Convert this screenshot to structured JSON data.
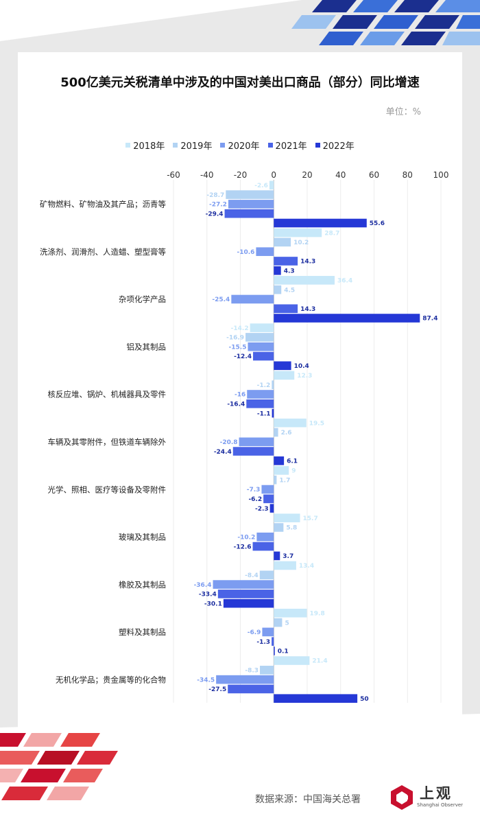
{
  "title": "500亿美元关税清单中涉及的中国对美出口商品（部分）同比增速",
  "unit": "单位：%",
  "source": "数据来源：中国海关总署",
  "logo": {
    "main": "上观",
    "sub": "Shanghai Observer"
  },
  "colors": {
    "2018年": "#c7e8f9",
    "2019年": "#b2d3f3",
    "2020年": "#7c9cf0",
    "2021年": "#4a63e6",
    "2022年": "#2538d6"
  },
  "chart_data": {
    "type": "bar",
    "orientation": "horizontal",
    "title": "500亿美元关税清单中涉及的中国对美出口商品（部分）同比增速",
    "unit": "单位：%",
    "xlim": [
      -60,
      100
    ],
    "xticks": [
      -60,
      -40,
      -20,
      0,
      20,
      40,
      60,
      80,
      100
    ],
    "legend_position": "top",
    "grid": true,
    "categories": [
      "矿物燃料、矿物油及其产品；沥青等",
      "洗涤剂、润滑剂、人造蜡、塑型膏等",
      "杂项化学产品",
      "铝及其制品",
      "核反应堆、锅炉、机械器具及零件",
      "车辆及其零附件，但铁道车辆除外",
      "光学、照相、医疗等设备及零附件",
      "玻璃及其制品",
      "橡胶及其制品",
      "塑料及其制品",
      "无机化学品；贵金属等的化合物"
    ],
    "series": [
      {
        "name": "2018年",
        "values": [
          -2.6,
          28.7,
          36.4,
          -14.2,
          12.3,
          19.5,
          9,
          15.7,
          13.4,
          19.8,
          21.4
        ]
      },
      {
        "name": "2019年",
        "values": [
          -28.7,
          10.2,
          4.5,
          -16.9,
          -1.2,
          2.6,
          1.7,
          5.8,
          -8.4,
          5,
          -8.3
        ]
      },
      {
        "name": "2020年",
        "values": [
          -27.2,
          -10.6,
          -25.4,
          -15.5,
          -16,
          -20.8,
          -7.3,
          -10.2,
          -36.4,
          -6.9,
          -34.5
        ]
      },
      {
        "name": "2021年",
        "values": [
          -29.4,
          14.3,
          14.3,
          -12.4,
          -16.4,
          -24.4,
          -6.2,
          -12.6,
          -33.4,
          -1.3,
          -27.5
        ]
      },
      {
        "name": "2022年",
        "values": [
          55.6,
          4.3,
          87.4,
          10.4,
          -1.1,
          6.1,
          -2.3,
          3.7,
          -30.1,
          0.1,
          50
        ]
      }
    ]
  }
}
